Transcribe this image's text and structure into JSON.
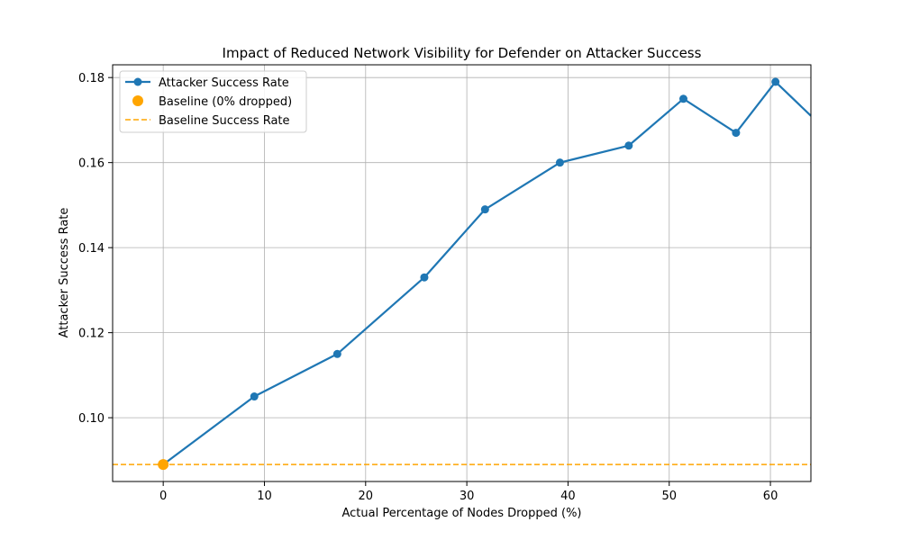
{
  "chart_data": {
    "type": "line",
    "title": "Impact of Reduced Network Visibility for Defender on Attacker Success",
    "xlabel": "Actual Percentage of Nodes Dropped (%)",
    "ylabel": "Attacker Success Rate",
    "xlim": [
      -5,
      64
    ],
    "ylim": [
      0.085,
      0.183
    ],
    "xticks": [
      0,
      10,
      20,
      30,
      40,
      50,
      60
    ],
    "yticks": [
      0.1,
      0.12,
      0.14,
      0.16,
      0.18
    ],
    "xtick_labels": [
      "0",
      "10",
      "20",
      "30",
      "40",
      "50",
      "60"
    ],
    "ytick_labels": [
      "0.10",
      "0.12",
      "0.14",
      "0.16",
      "0.18"
    ],
    "grid": true,
    "legend_position": "top-left",
    "series": [
      {
        "name": "Attacker Success Rate",
        "kind": "line-marker",
        "color": "#1f77b4",
        "x": [
          0,
          9,
          17.2,
          25.8,
          31.8,
          39.2,
          46,
          51.4,
          56.6,
          60.5,
          64
        ],
        "y": [
          0.089,
          0.105,
          0.115,
          0.133,
          0.149,
          0.16,
          0.164,
          0.175,
          0.167,
          0.179,
          0.171
        ]
      },
      {
        "name": "Baseline (0% dropped)",
        "kind": "scatter",
        "color": "#ffa500",
        "x": [
          0
        ],
        "y": [
          0.089
        ]
      },
      {
        "name": "Baseline Success Rate",
        "kind": "hline",
        "color": "#ffa500",
        "y": 0.089
      }
    ]
  }
}
